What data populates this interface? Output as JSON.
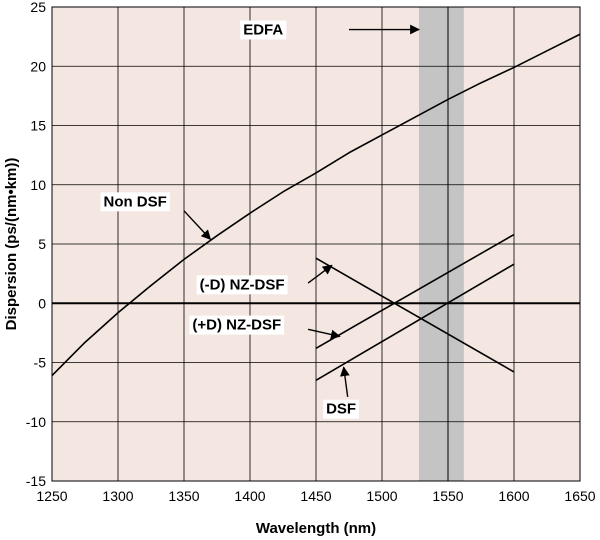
{
  "chart_data": {
    "type": "line",
    "title": "",
    "xlabel": "Wavelength (nm)",
    "ylabel": "Dispersion (ps/(nm•km))",
    "xlim": [
      1250,
      1650
    ],
    "ylim": [
      -15,
      25
    ],
    "x_ticks": [
      1250,
      1300,
      1350,
      1400,
      1450,
      1500,
      1550,
      1600,
      1650
    ],
    "y_ticks": [
      -15,
      -10,
      -5,
      0,
      5,
      10,
      15,
      20,
      25
    ],
    "grid": true,
    "colors": {
      "plot_background": "#f4e6e1",
      "grid": "#000000",
      "band": "#c4c4c4",
      "line": "#000000"
    },
    "band": {
      "label": "EDFA",
      "x_range": [
        1528,
        1562
      ],
      "center_line_x": 1550
    },
    "series": [
      {
        "name": "Non DSF",
        "x": [
          1250,
          1275,
          1300,
          1325,
          1350,
          1375,
          1400,
          1425,
          1450,
          1475,
          1500,
          1525,
          1550,
          1575,
          1600,
          1625,
          1650
        ],
        "y": [
          -6.1,
          -3.3,
          -0.8,
          1.5,
          3.7,
          5.7,
          7.6,
          9.4,
          11.0,
          12.7,
          14.2,
          15.7,
          17.2,
          18.6,
          19.9,
          21.3,
          22.7
        ]
      },
      {
        "name": "(-D) NZ-DSF",
        "x": [
          1450,
          1600
        ],
        "y": [
          3.8,
          -5.8
        ]
      },
      {
        "name": "(+D) NZ-DSF",
        "x": [
          1450,
          1600
        ],
        "y": [
          -3.8,
          5.8
        ]
      },
      {
        "name": "DSF",
        "x": [
          1450,
          1600
        ],
        "y": [
          -6.5,
          3.3
        ]
      }
    ],
    "annotations": [
      {
        "text": "EDFA",
        "arrow_to": [
          1528,
          23.1
        ],
        "arrow_from": [
          1475,
          23.1
        ],
        "text_at": [
          1410,
          23.1
        ]
      },
      {
        "text": "Non DSF",
        "arrow_to": [
          1370,
          5.4
        ],
        "arrow_from": [
          1350,
          7.8
        ],
        "text_at": [
          1313,
          8.6
        ]
      },
      {
        "text": "(-D) NZ-DSF",
        "arrow_to": [
          1462,
          3.2
        ],
        "arrow_from": [
          1444,
          1.7
        ],
        "text_at": [
          1394,
          1.6
        ]
      },
      {
        "text": "(+D) NZ-DSF",
        "arrow_to": [
          1468,
          -2.8
        ],
        "arrow_from": [
          1444,
          -2.2
        ],
        "text_at": [
          1390,
          -1.8
        ]
      },
      {
        "text": "DSF",
        "arrow_to": [
          1471,
          -5.4
        ],
        "arrow_from": [
          1474,
          -7.9
        ],
        "text_at": [
          1469,
          -8.9
        ]
      }
    ]
  }
}
